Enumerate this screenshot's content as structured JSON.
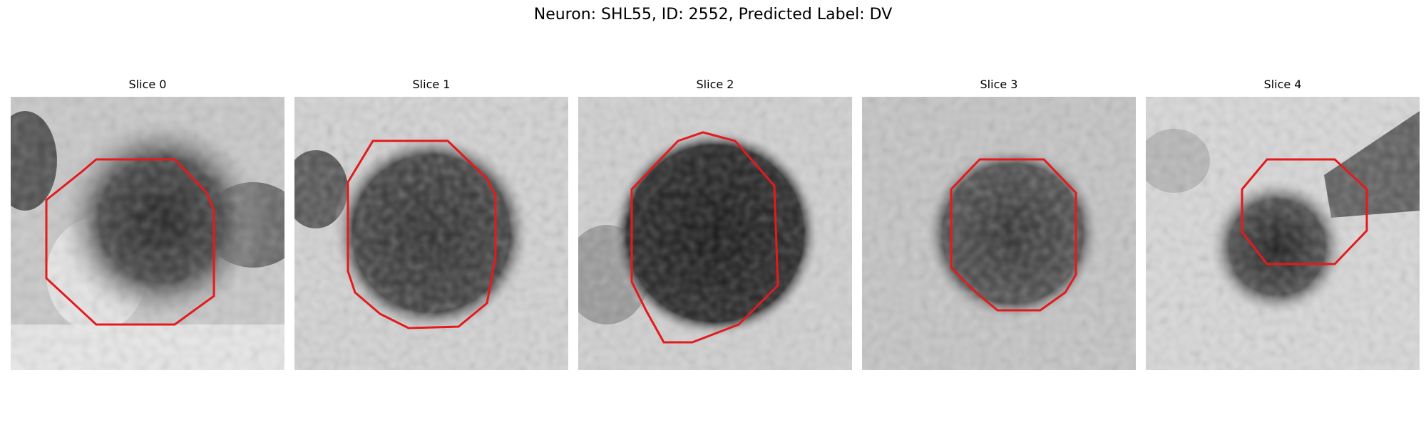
{
  "figure": {
    "title": "Neuron: SHL55, ID: 2552, Predicted Label: DV",
    "outline_color": "#e41a1c"
  },
  "panels": [
    {
      "title": "Slice 0"
    },
    {
      "title": "Slice 1"
    },
    {
      "title": "Slice 2"
    },
    {
      "title": "Slice 3"
    },
    {
      "title": "Slice 4"
    }
  ]
}
